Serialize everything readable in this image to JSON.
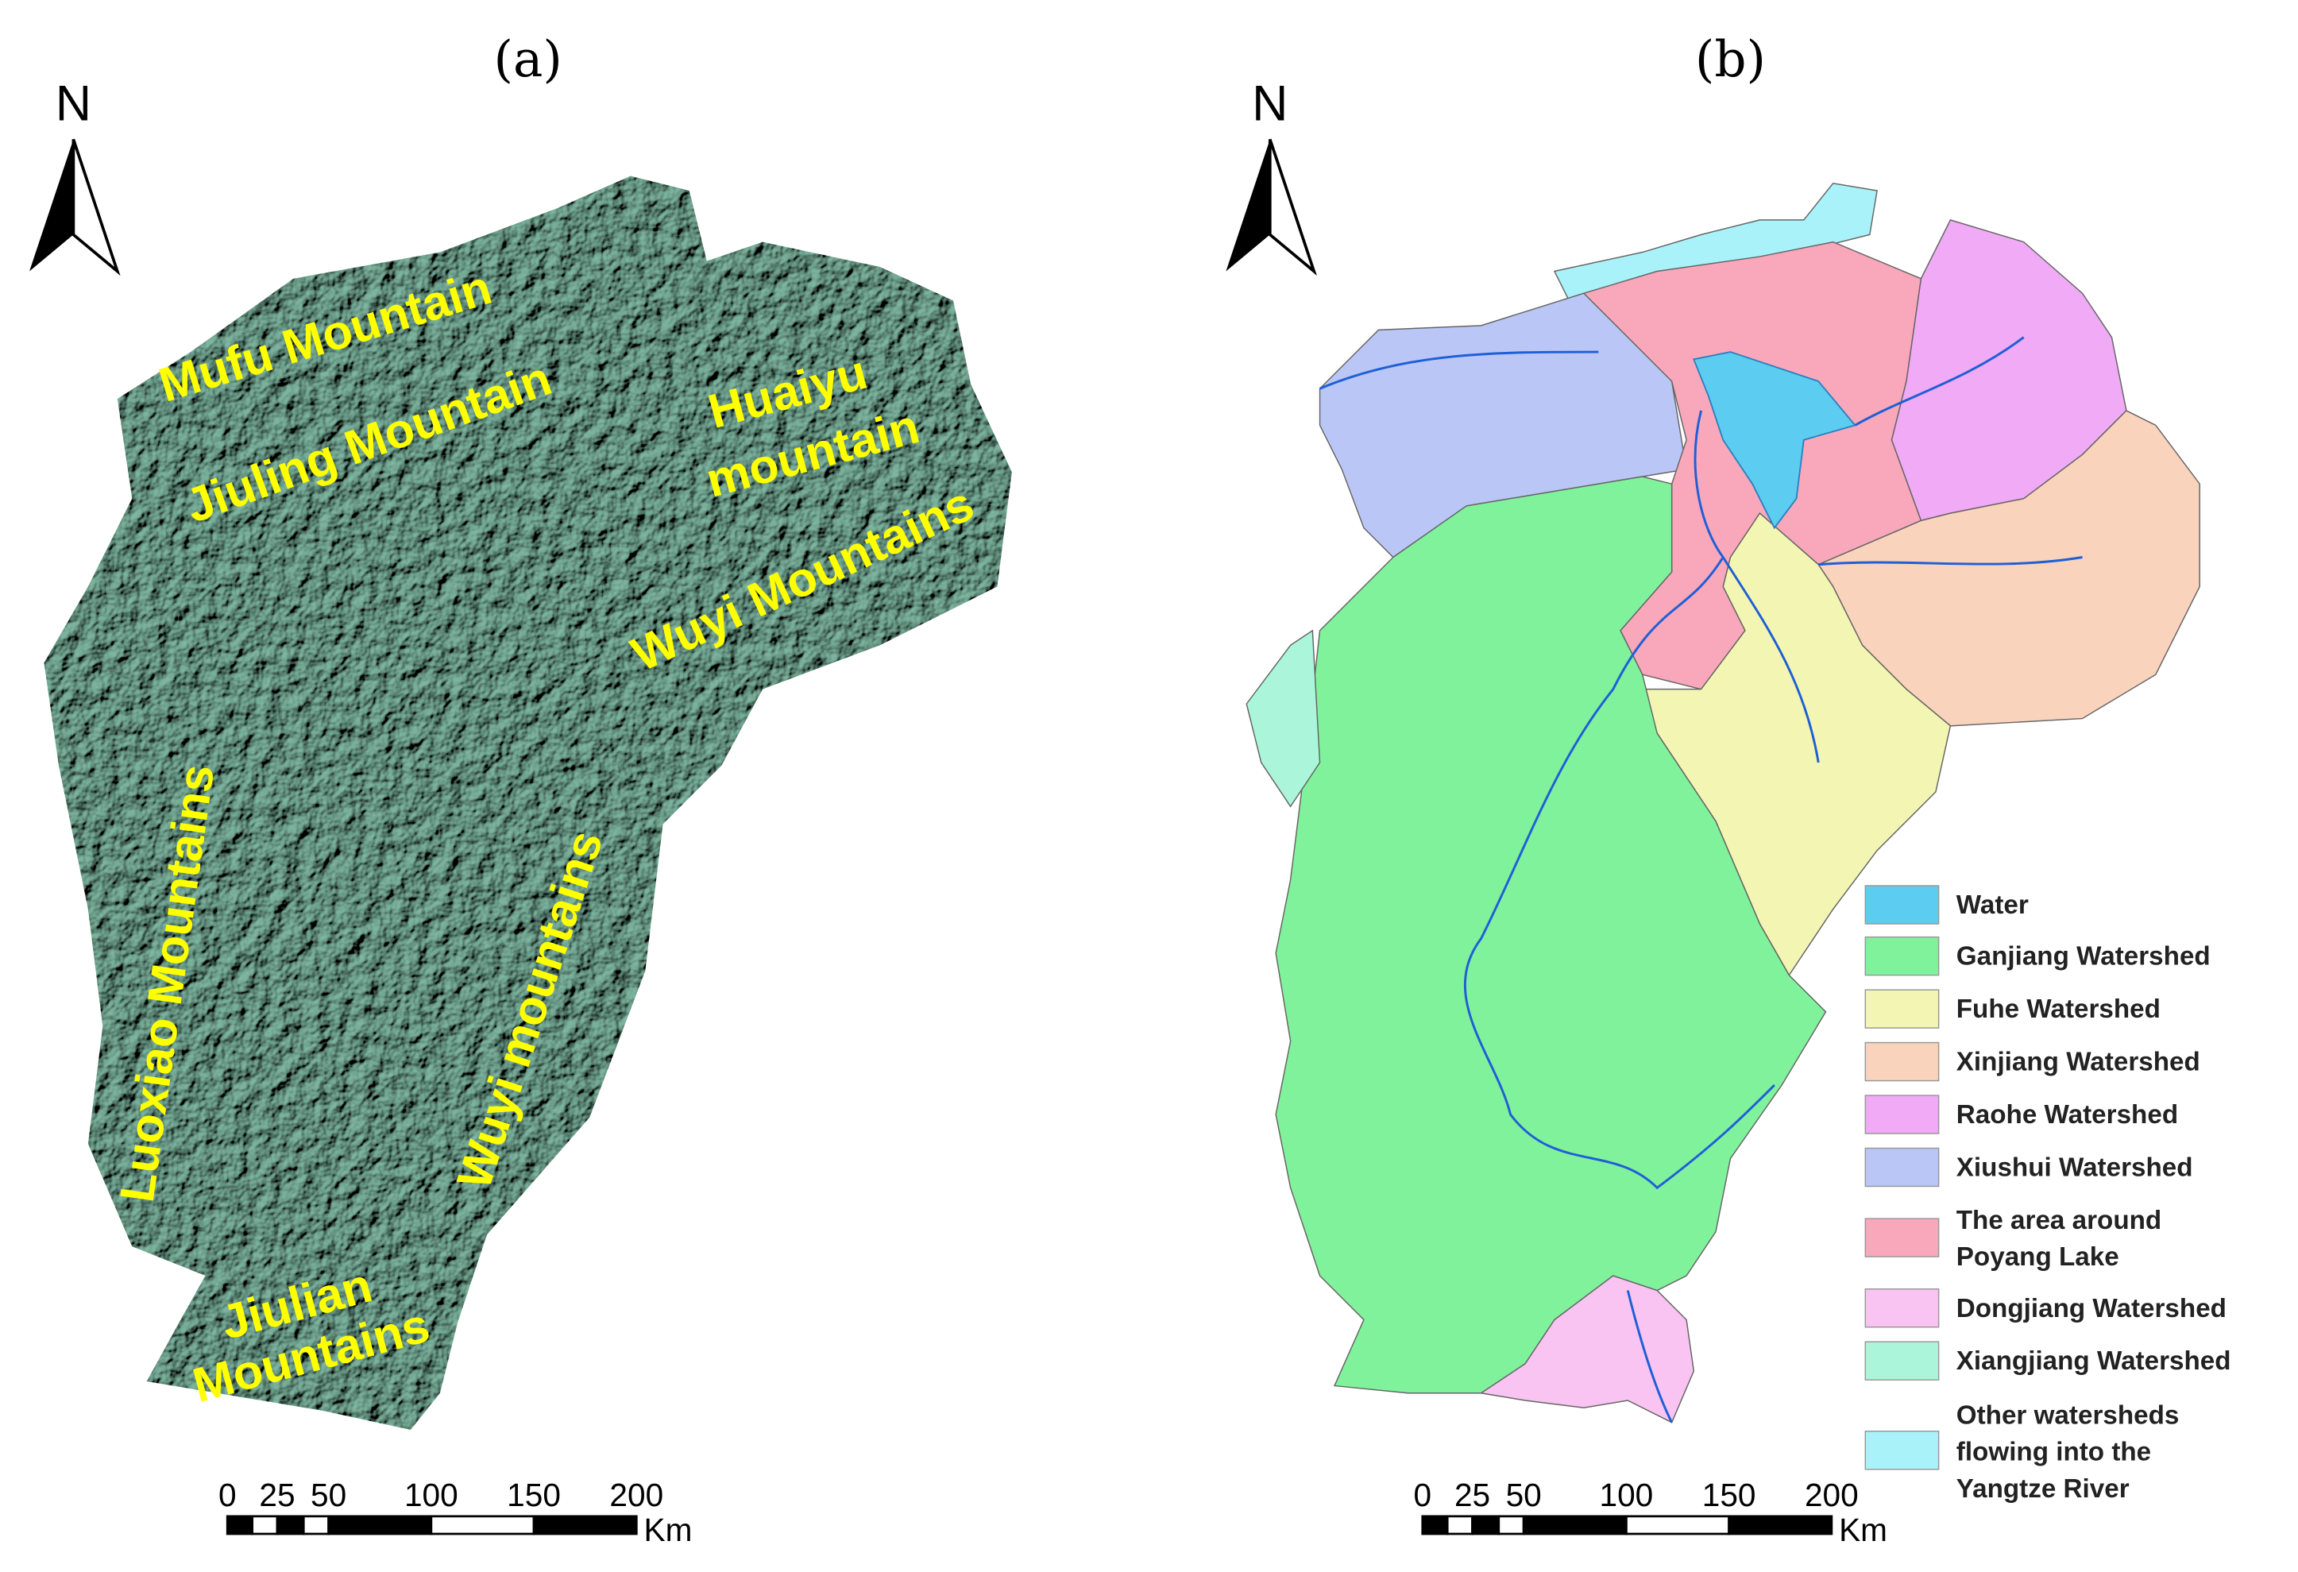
{
  "panel_a": {
    "title": "(a)",
    "north": "N",
    "labels": [
      "Mufu Mountain",
      "Jiuling Mountain",
      "Huaiyu",
      "mountain",
      "Wuyi Mountains",
      "Luoxiao Mountains",
      "Wuyi mountains",
      "Jiulian",
      "Mountains"
    ],
    "scale_bar": {
      "ticks": [
        "0",
        "25",
        "50",
        "100",
        "150",
        "200"
      ],
      "unit": "Km"
    }
  },
  "panel_b": {
    "title": "(b)",
    "north": "N",
    "scale_bar": {
      "ticks": [
        "0",
        "25",
        "50",
        "100",
        "150",
        "200"
      ],
      "unit": "Km"
    },
    "legend": [
      {
        "label": [
          "Water"
        ],
        "color": "#5ccdf0"
      },
      {
        "label": [
          "Ganjiang Watershed"
        ],
        "color": "#80f29c"
      },
      {
        "label": [
          "Fuhe Watershed"
        ],
        "color": "#f3f6b2"
      },
      {
        "label": [
          "Xinjiang Watershed"
        ],
        "color": "#f9d3bb"
      },
      {
        "label": [
          "Raohe Watershed"
        ],
        "color": "#f0aaf6"
      },
      {
        "label": [
          "Xiushui Watershed"
        ],
        "color": "#bac6f5"
      },
      {
        "label": [
          "The area around",
          "Poyang Lake"
        ],
        "color": "#f8a8ba"
      },
      {
        "label": [
          "Dongjiang Watershed"
        ],
        "color": "#f9c4f2"
      },
      {
        "label": [
          "Xiangjiang Watershed"
        ],
        "color": "#abf6da"
      },
      {
        "label": [
          "Other watersheds",
          "flowing into the",
          "Yangtze River"
        ],
        "color": "#a9f2f9"
      }
    ]
  }
}
